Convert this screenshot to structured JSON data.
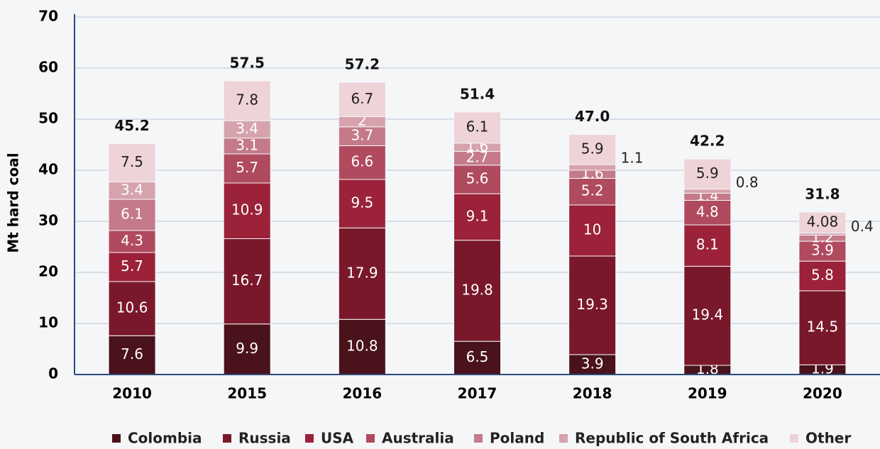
{
  "chart_data": {
    "type": "stacked_bar",
    "y_label": "Mt hard coal",
    "categories": [
      "2010",
      "2015",
      "2016",
      "2017",
      "2018",
      "2019",
      "2020"
    ],
    "series": [
      {
        "name": "Colombia",
        "color": "#4a121b",
        "values": [
          7.6,
          9.9,
          10.8,
          6.5,
          3.9,
          1.8,
          1.9
        ]
      },
      {
        "name": "Russia",
        "color": "#7a182b",
        "values": [
          10.6,
          16.7,
          17.9,
          19.8,
          19.3,
          19.4,
          14.5
        ]
      },
      {
        "name": "USA",
        "color": "#9b2238",
        "values": [
          5.7,
          10.9,
          9.5,
          9.1,
          10,
          8.1,
          5.8
        ]
      },
      {
        "name": "Australia",
        "color": "#b04a5e",
        "values": [
          4.3,
          5.7,
          6.6,
          5.6,
          5.2,
          4.8,
          3.9
        ]
      },
      {
        "name": "Poland",
        "color": "#c47a89",
        "values": [
          6.1,
          3.1,
          3.7,
          2.7,
          1.6,
          1.4,
          1.2
        ]
      },
      {
        "name": "Republic of South Africa",
        "color": "#d6a3ad",
        "values": [
          3.4,
          3.4,
          2,
          1.6,
          1.1,
          0.8,
          0.4
        ]
      },
      {
        "name": "Other",
        "color": "#eed3d8",
        "values": [
          7.5,
          7.8,
          6.7,
          6.1,
          5.9,
          5.9,
          4.08
        ]
      }
    ],
    "totals": {
      "values": [
        45.2,
        57.5,
        57.2,
        51.4,
        47,
        42.2,
        31.8
      ],
      "value_labels": [
        "45.2",
        "57.5",
        "57.2",
        "51.4",
        "47.0",
        "42.2",
        "31.8"
      ]
    },
    "ylim": [
      0,
      70
    ],
    "yticks": [
      0,
      10,
      20,
      30,
      40,
      50,
      60,
      70
    ],
    "grid": true
  }
}
